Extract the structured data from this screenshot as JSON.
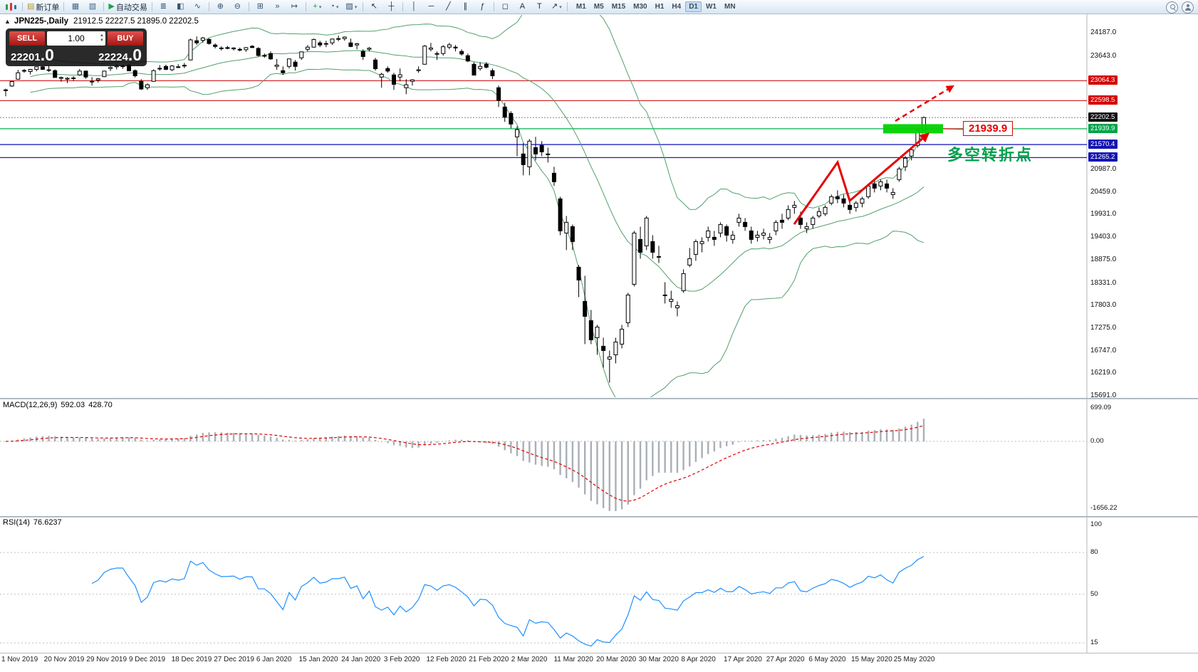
{
  "toolbar": {
    "groups": [
      [
        {
          "name": "terminal-logo-icon",
          "logo": true
        }
      ],
      [
        {
          "name": "new-order-button",
          "glyph": "▤",
          "color": "#b8962e",
          "label": "新订单"
        }
      ],
      [
        {
          "name": "chart-window-icon",
          "glyph": "▦",
          "color": "#46698c"
        },
        {
          "name": "profiles-icon",
          "glyph": "▧",
          "color": "#46698c"
        }
      ],
      [
        {
          "name": "autotrade-button",
          "glyph": "▶",
          "color": "#1aa54c",
          "label": "自动交易"
        }
      ],
      [
        {
          "name": "bars-mode-icon",
          "glyph": "≣",
          "color": "#35526e"
        },
        {
          "name": "candles-mode-icon",
          "glyph": "◧",
          "color": "#35526e"
        },
        {
          "name": "line-mode-icon",
          "glyph": "∿",
          "color": "#35526e"
        }
      ],
      [
        {
          "name": "zoom-in-icon",
          "glyph": "⊕",
          "color": "#35526e"
        },
        {
          "name": "zoom-out-icon",
          "glyph": "⊖",
          "color": "#35526e"
        }
      ],
      [
        {
          "name": "tile-windows-icon",
          "glyph": "⊞",
          "color": "#35526e"
        },
        {
          "name": "auto-scroll-icon",
          "glyph": "»",
          "color": "#35526e"
        },
        {
          "name": "chart-shift-icon",
          "glyph": "↦",
          "color": "#35526e"
        }
      ],
      [
        {
          "name": "new-chart-button",
          "glyph": "+",
          "color": "#1aa54c",
          "caret": true
        },
        {
          "name": "periods-button",
          "glyph": "◔",
          "color": "#35526e",
          "caret": true
        },
        {
          "name": "templates-button",
          "glyph": "▨",
          "color": "#35526e",
          "caret": true
        }
      ],
      [
        {
          "name": "cursor-tool-icon",
          "glyph": "↖",
          "color": "#1d2d3d"
        },
        {
          "name": "crosshair-tool-icon",
          "glyph": "┼",
          "color": "#1d2d3d"
        }
      ],
      [
        {
          "name": "vertical-line-tool-icon",
          "glyph": "│",
          "color": "#1d2d3d"
        },
        {
          "name": "horizontal-line-tool-icon",
          "glyph": "─",
          "color": "#1d2d3d"
        },
        {
          "name": "trendline-tool-icon",
          "glyph": "╱",
          "color": "#1d2d3d"
        },
        {
          "name": "channel-tool-icon",
          "glyph": "∥",
          "color": "#1d2d3d"
        },
        {
          "name": "fibonacci-tool-icon",
          "glyph": "ƒ",
          "color": "#1d2d3d"
        }
      ],
      [
        {
          "name": "shapes-tool-icon",
          "glyph": "◻",
          "color": "#1d2d3d"
        },
        {
          "name": "text-tool-icon",
          "glyph": "A",
          "color": "#1d2d3d"
        },
        {
          "name": "label-tool-icon",
          "glyph": "T",
          "color": "#1d2d3d"
        },
        {
          "name": "arrows-tool-icon",
          "glyph": "↗",
          "color": "#1d2d3d",
          "caret": true
        }
      ]
    ],
    "timeframes": [
      "M1",
      "M5",
      "M15",
      "M30",
      "H1",
      "H4",
      "D1",
      "W1",
      "MN"
    ],
    "active_timeframe": "D1"
  },
  "chart": {
    "collapse_glyph": "▲",
    "symbol_period": "JPN225-,Daily",
    "ohlc_text": "21912.5 22227.5 21895.0 22202.5"
  },
  "trade_panel": {
    "sell_label": "SELL",
    "buy_label": "BUY",
    "volume": "1.00",
    "sell_price_int": "22201",
    "sell_price_frac": ".0",
    "buy_price_int": "22224",
    "buy_price_frac": ".0"
  },
  "annotations": {
    "price_callout": "21939.9",
    "turning_point": "多空转折点",
    "highlight_color": "#00d200",
    "arrow_color": "#e60000"
  },
  "indicators": {
    "macd": {
      "name_label": "MACD(12,26,9)",
      "value_main": "592.03",
      "value_signal": "428.70",
      "scale_top": "699.09",
      "scale_zero": "0.00",
      "scale_bottom": "-1656.22",
      "histogram_color": "#a9afb5",
      "signal_color": "#e00000"
    },
    "rsi": {
      "name_label": "RSI(14)",
      "value": "76.6237",
      "scale_labels": [
        100,
        80,
        50,
        15
      ],
      "level_lines": [
        80,
        50,
        15
      ],
      "line_color": "#1e90ff"
    }
  },
  "chart_data": {
    "type": "candlestick",
    "symbol": "JPN225-",
    "timeframe": "Daily",
    "last_ohlc": {
      "open": 21912.5,
      "high": 22227.5,
      "low": 21895.0,
      "close": 22202.5
    },
    "y_axis_ticks": [
      24187,
      23643,
      20987,
      20459,
      19931,
      19403,
      18875,
      18331,
      17803,
      17275,
      16747,
      16219,
      15691
    ],
    "price_tags": [
      {
        "label": "23064.3",
        "price": 23064.3,
        "bg": "#d40000"
      },
      {
        "label": "22598.5",
        "price": 22598.5,
        "bg": "#d40000"
      },
      {
        "label": "22202.5",
        "price": 22202.5,
        "bg": "#101010"
      },
      {
        "label": "21939.9",
        "price": 21939.9,
        "bg": "#00a44a"
      },
      {
        "label": "21570.4",
        "price": 21570.4,
        "bg": "#1414b4"
      },
      {
        "label": "21265.2",
        "price": 21265.2,
        "bg": "#1414b4"
      }
    ],
    "levels": [
      {
        "price": 23064.3,
        "color": "#cc0000",
        "width": 1
      },
      {
        "price": 22598.5,
        "color": "#cc0000",
        "width": 1
      },
      {
        "price": 21939.9,
        "color": "#00b050",
        "width": 1.3
      },
      {
        "price": 21570.4,
        "color": "#2020c0",
        "width": 1.3
      },
      {
        "price": 21265.2,
        "color": "#2020c0",
        "width": 1.3
      }
    ],
    "current_price_line": {
      "price": 22202.5,
      "color": "#808080"
    },
    "bollinger": {
      "period": 20,
      "deviation": 2,
      "color": "#53a06b"
    },
    "x_labels": [
      "1 Nov 2019",
      "20 Nov 2019",
      "29 Nov 2019",
      "9 Dec 2019",
      "18 Dec 2019",
      "27 Dec 2019",
      "6 Jan 2020",
      "15 Jan 2020",
      "24 Jan 2020",
      "3 Feb 2020",
      "12 Feb 2020",
      "21 Feb 2020",
      "2 Mar 2020",
      "11 Mar 2020",
      "20 Mar 2020",
      "30 Mar 2020",
      "8 Apr 2020",
      "17 Apr 2020",
      "27 Apr 2020",
      "6 May 2020",
      "15 May 2020",
      "25 May 2020"
    ],
    "candles_ohlc": [
      [
        22850,
        22880,
        22700,
        22850
      ],
      [
        22940,
        23055,
        22920,
        23045
      ],
      [
        23100,
        23320,
        23090,
        23250
      ],
      [
        23300,
        23340,
        23250,
        23305
      ],
      [
        23280,
        23335,
        23210,
        23330
      ],
      [
        23330,
        23390,
        23285,
        23390
      ],
      [
        23390,
        23420,
        23315,
        23330
      ],
      [
        23320,
        23420,
        23270,
        23320
      ],
      [
        23300,
        23330,
        23140,
        23140
      ],
      [
        23120,
        23160,
        23040,
        23140
      ],
      [
        23100,
        23150,
        23010,
        23120
      ],
      [
        23130,
        23170,
        23060,
        23120
      ],
      [
        23200,
        23340,
        23180,
        23290
      ],
      [
        23290,
        23300,
        23110,
        23150
      ],
      [
        23050,
        23150,
        22950,
        23040
      ],
      [
        23080,
        23130,
        23020,
        23110
      ],
      [
        23160,
        23300,
        23150,
        23290
      ],
      [
        23350,
        23400,
        23290,
        23375
      ],
      [
        23390,
        23450,
        23330,
        23410
      ],
      [
        23400,
        23440,
        23340,
        23410
      ],
      [
        23430,
        23450,
        23290,
        23295
      ],
      [
        23300,
        23330,
        23140,
        23180
      ],
      [
        23050,
        23100,
        22850,
        22870
      ],
      [
        22900,
        23000,
        22850,
        22970
      ],
      [
        23050,
        23330,
        23040,
        23300
      ],
      [
        23340,
        23430,
        23300,
        23355
      ],
      [
        23400,
        23440,
        23310,
        23330
      ],
      [
        23320,
        23430,
        23290,
        23410
      ],
      [
        23390,
        23450,
        23360,
        23390
      ],
      [
        23420,
        23480,
        23360,
        23425
      ],
      [
        23550,
        24050,
        23540,
        24020
      ],
      [
        24000,
        24100,
        23900,
        23950
      ],
      [
        24010,
        24090,
        23950,
        24065
      ],
      [
        24030,
        24060,
        23910,
        23935
      ],
      [
        23900,
        23940,
        23820,
        23865
      ],
      [
        23830,
        23870,
        23770,
        23815
      ],
      [
        23840,
        23880,
        23800,
        23820
      ],
      [
        23810,
        23850,
        23770,
        23830
      ],
      [
        23800,
        23840,
        23750,
        23780
      ],
      [
        23790,
        23850,
        23740,
        23840
      ],
      [
        23870,
        23900,
        23830,
        23840
      ],
      [
        23820,
        23850,
        23630,
        23655
      ],
      [
        23650,
        23700,
        23600,
        23655
      ],
      [
        23700,
        23750,
        23550,
        23575
      ],
      [
        23400,
        23575,
        23320,
        23430
      ],
      [
        23300,
        23400,
        23200,
        23250
      ],
      [
        23400,
        23580,
        23350,
        23575
      ],
      [
        23500,
        23550,
        23300,
        23400
      ],
      [
        23600,
        23750,
        23550,
        23740
      ],
      [
        23800,
        23900,
        23750,
        23850
      ],
      [
        23850,
        24050,
        23840,
        24030
      ],
      [
        23950,
        24000,
        23850,
        23900
      ],
      [
        23920,
        24000,
        23850,
        23935
      ],
      [
        23950,
        24050,
        23900,
        24040
      ],
      [
        24050,
        24120,
        23990,
        24040
      ],
      [
        24050,
        24100,
        24000,
        24085
      ],
      [
        23950,
        24050,
        23850,
        23865
      ],
      [
        23900,
        23950,
        23800,
        23930
      ],
      [
        23750,
        23800,
        23550,
        23630
      ],
      [
        23800,
        23850,
        23750,
        23825
      ],
      [
        23550,
        23600,
        23300,
        23345
      ],
      [
        23150,
        23250,
        22900,
        23215
      ],
      [
        23350,
        23400,
        23250,
        23290
      ],
      [
        23200,
        23250,
        22850,
        22980
      ],
      [
        23150,
        23350,
        23050,
        23205
      ],
      [
        22900,
        23100,
        22750,
        22970
      ],
      [
        23050,
        23100,
        22950,
        23085
      ],
      [
        23300,
        23400,
        23250,
        23320
      ],
      [
        23450,
        23900,
        23440,
        23875
      ],
      [
        23800,
        23950,
        23750,
        23830
      ],
      [
        23700,
        23750,
        23550,
        23685
      ],
      [
        23700,
        23900,
        23650,
        23860
      ],
      [
        23850,
        23950,
        23800,
        23905
      ],
      [
        23850,
        23900,
        23750,
        23830
      ],
      [
        23750,
        23800,
        23650,
        23690
      ],
      [
        23650,
        23700,
        23500,
        23525
      ],
      [
        23450,
        23500,
        23190,
        23195
      ],
      [
        23350,
        23500,
        23300,
        23400
      ],
      [
        23450,
        23500,
        23350,
        23380
      ],
      [
        23300,
        23350,
        23100,
        23180
      ],
      [
        22900,
        22950,
        22450,
        22605
      ],
      [
        22450,
        22550,
        22100,
        22210
      ],
      [
        22300,
        22350,
        21950,
        22050
      ],
      [
        21750,
        22000,
        21300,
        21920
      ],
      [
        21350,
        21600,
        20850,
        21100
      ],
      [
        21050,
        21700,
        20850,
        21650
      ],
      [
        21500,
        21750,
        21200,
        21350
      ],
      [
        21550,
        21650,
        21300,
        21400
      ],
      [
        21350,
        21500,
        21150,
        21350
      ],
      [
        20900,
        21050,
        20600,
        20700
      ],
      [
        20300,
        20350,
        19450,
        19550
      ],
      [
        19500,
        19900,
        19100,
        19750
      ],
      [
        19650,
        19700,
        19100,
        19300
      ],
      [
        18700,
        18750,
        18000,
        18400
      ],
      [
        17900,
        18500,
        16900,
        17550
      ],
      [
        17450,
        17700,
        16900,
        17000
      ],
      [
        17050,
        17350,
        16650,
        17300
      ],
      [
        16850,
        17050,
        16350,
        16750
      ],
      [
        16550,
        16750,
        16000,
        16600
      ],
      [
        16650,
        17050,
        16450,
        16950
      ],
      [
        16900,
        17350,
        16800,
        17250
      ],
      [
        17400,
        18100,
        17300,
        18050
      ],
      [
        18300,
        19550,
        18250,
        19500
      ],
      [
        19350,
        19650,
        18900,
        19050
      ],
      [
        19200,
        19900,
        19100,
        19850
      ],
      [
        19300,
        19450,
        18900,
        19050
      ],
      [
        18950,
        19200,
        18800,
        18950
      ],
      [
        18050,
        18350,
        17850,
        18050
      ],
      [
        17900,
        18150,
        17750,
        17950
      ],
      [
        17750,
        17900,
        17550,
        17800
      ],
      [
        18150,
        18650,
        18100,
        18550
      ],
      [
        18750,
        19150,
        18700,
        18900
      ],
      [
        19000,
        19350,
        18850,
        19300
      ],
      [
        19250,
        19400,
        19050,
        19300
      ],
      [
        19400,
        19650,
        19300,
        19550
      ],
      [
        19400,
        19550,
        19200,
        19350
      ],
      [
        19500,
        19750,
        19400,
        19700
      ],
      [
        19650,
        19700,
        19300,
        19450
      ],
      [
        19350,
        19550,
        19250,
        19450
      ],
      [
        19750,
        19950,
        19650,
        19850
      ],
      [
        19750,
        19850,
        19550,
        19650
      ],
      [
        19550,
        19650,
        19250,
        19350
      ],
      [
        19400,
        19550,
        19300,
        19450
      ],
      [
        19450,
        19600,
        19350,
        19500
      ],
      [
        19350,
        19500,
        19250,
        19400
      ],
      [
        19550,
        19800,
        19450,
        19750
      ],
      [
        19800,
        19950,
        19600,
        19750
      ],
      [
        19850,
        20150,
        19800,
        20050
      ],
      [
        20100,
        20250,
        19950,
        20150
      ],
      [
        19850,
        20000,
        19600,
        19700
      ],
      [
        19600,
        19750,
        19500,
        19650
      ],
      [
        19700,
        19900,
        19600,
        19850
      ],
      [
        19900,
        20100,
        19850,
        20000
      ],
      [
        19950,
        20150,
        19900,
        20100
      ],
      [
        20200,
        20400,
        20150,
        20350
      ],
      [
        20350,
        20500,
        20200,
        20300
      ],
      [
        20300,
        20400,
        20100,
        20200
      ],
      [
        20150,
        20250,
        19950,
        20050
      ],
      [
        20100,
        20250,
        20000,
        20200
      ],
      [
        20200,
        20350,
        20100,
        20300
      ],
      [
        20350,
        20650,
        20300,
        20600
      ],
      [
        20650,
        20750,
        20450,
        20550
      ],
      [
        20600,
        20750,
        20500,
        20700
      ],
      [
        20650,
        20750,
        20450,
        20550
      ],
      [
        20400,
        20550,
        20300,
        20450
      ],
      [
        20750,
        21050,
        20700,
        21000
      ],
      [
        21050,
        21300,
        20950,
        21250
      ],
      [
        21300,
        21500,
        21200,
        21450
      ],
      [
        21550,
        21950,
        21500,
        21900
      ],
      [
        21912.5,
        22227.5,
        21895,
        22202.5
      ]
    ]
  }
}
